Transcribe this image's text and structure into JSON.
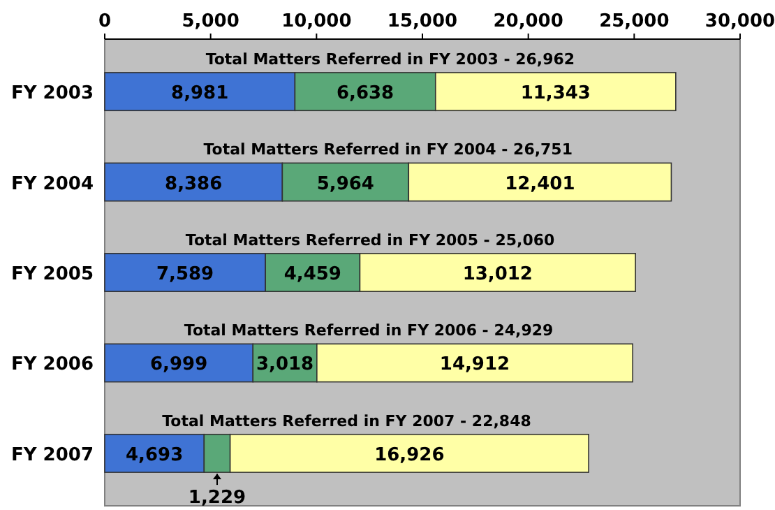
{
  "chart_data": {
    "type": "bar",
    "orientation": "horizontal",
    "stacked": true,
    "categories": [
      "FY 2003",
      "FY 2004",
      "FY 2005",
      "FY 2006",
      "FY 2007"
    ],
    "series": [
      {
        "color": "#3f73d4",
        "values": [
          8981,
          8386,
          7589,
          6999,
          4693
        ],
        "value_labels": [
          "8,981",
          "8,386",
          "7,589",
          "6,999",
          "4,693"
        ]
      },
      {
        "color": "#5aa878",
        "values": [
          6638,
          5964,
          4459,
          3018,
          1229
        ],
        "value_labels": [
          "6,638",
          "5,964",
          "4,459",
          "3,018",
          "1,229"
        ]
      },
      {
        "color": "#ffffa6",
        "values": [
          11343,
          12401,
          13012,
          14912,
          16926
        ],
        "value_labels": [
          "11,343",
          "12,401",
          "13,012",
          "14,912",
          "16,926"
        ]
      }
    ],
    "totals": [
      "Total Matters Referred in FY 2003 - 26,962",
      "Total Matters Referred in FY 2004 - 26,751",
      "Total Matters Referred in FY 2005 - 25,060",
      "Total Matters Referred in FY 2006 - 24,929",
      "Total Matters Referred in FY 2007 - 22,848"
    ],
    "xlim": [
      0,
      30000
    ],
    "xticks": [
      {
        "value": 0,
        "label": "0"
      },
      {
        "value": 5000,
        "label": "5,000"
      },
      {
        "value": 10000,
        "label": "10,000"
      },
      {
        "value": 15000,
        "label": "15,000"
      },
      {
        "value": 20000,
        "label": "20,000"
      },
      {
        "value": 25000,
        "label": "25,000"
      },
      {
        "value": 30000,
        "label": "30,000"
      }
    ]
  }
}
